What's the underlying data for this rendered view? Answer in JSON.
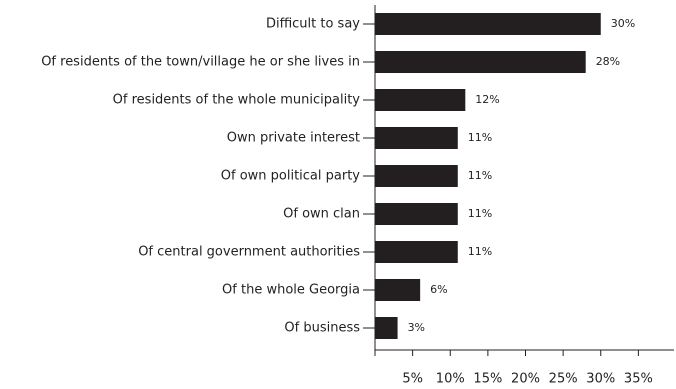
{
  "chart_data": {
    "type": "bar",
    "orientation": "horizontal",
    "categories": [
      "Difficult to say",
      "Of residents of the town/village he or she lives in",
      "Of residents of the whole municipality",
      "Own private interest",
      "Of own political party",
      "Of own clan",
      "Of central government authorities",
      "Of the whole Georgia",
      "Of business"
    ],
    "values": [
      30,
      28,
      12,
      11,
      11,
      11,
      11,
      6,
      3
    ],
    "value_labels": [
      "30%",
      "28%",
      "12%",
      "11%",
      "11%",
      "11%",
      "11%",
      "6%",
      "3%"
    ],
    "color": "#231f20",
    "xlim": [
      0,
      40
    ],
    "xticks": [
      {
        "value": 5,
        "label": "5%"
      },
      {
        "value": 10,
        "label": "10%"
      },
      {
        "value": 15,
        "label": "15%"
      },
      {
        "value": 20,
        "label": "20%"
      },
      {
        "value": 25,
        "label": "25%"
      },
      {
        "value": 30,
        "label": "30%"
      },
      {
        "value": 35,
        "label": "35%"
      }
    ],
    "grid": false
  }
}
